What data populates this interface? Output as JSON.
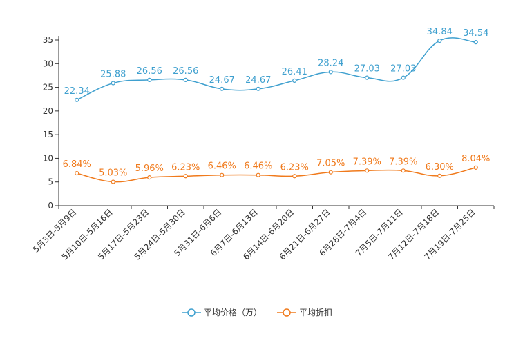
{
  "chart_data": {
    "type": "line",
    "title": "",
    "xlabel": "",
    "ylabel": "",
    "ylim": [
      0,
      35
    ],
    "yticks": [
      0,
      5,
      10,
      15,
      20,
      25,
      30,
      35
    ],
    "grid": false,
    "legend_position": "bottom",
    "categories": [
      "5月3日-5月9日",
      "5月10日-5月16日",
      "5月17日-5月23日",
      "5月24日-5月30日",
      "5月31日-6月6日",
      "6月7日-6月13日",
      "6月14日-6月20日",
      "6月21日-6月27日",
      "6月28日-7月4日",
      "7月5日-7月11日",
      "7月12日-7月18日",
      "7月19日-7月25日"
    ],
    "series": [
      {
        "name": "平均价格（万）",
        "color": "#3fa0cf",
        "values": [
          22.34,
          25.88,
          26.56,
          26.56,
          24.67,
          24.67,
          26.41,
          28.24,
          27.03,
          27.03,
          34.84,
          34.54
        ],
        "labels": [
          "22.34",
          "25.88",
          "26.56",
          "26.56",
          "24.67",
          "24.67",
          "26.41",
          "28.24",
          "27.03",
          "27.03",
          "34.84",
          "34.54"
        ]
      },
      {
        "name": "平均折扣",
        "color": "#f07a1c",
        "values": [
          6.84,
          5.03,
          5.96,
          6.23,
          6.46,
          6.46,
          6.23,
          7.05,
          7.39,
          7.39,
          6.3,
          8.04
        ],
        "labels": [
          "6.84%",
          "5.03%",
          "5.96%",
          "6.23%",
          "6.46%",
          "6.46%",
          "6.23%",
          "7.05%",
          "7.39%",
          "7.39%",
          "6.30%",
          "8.04%"
        ]
      }
    ]
  }
}
